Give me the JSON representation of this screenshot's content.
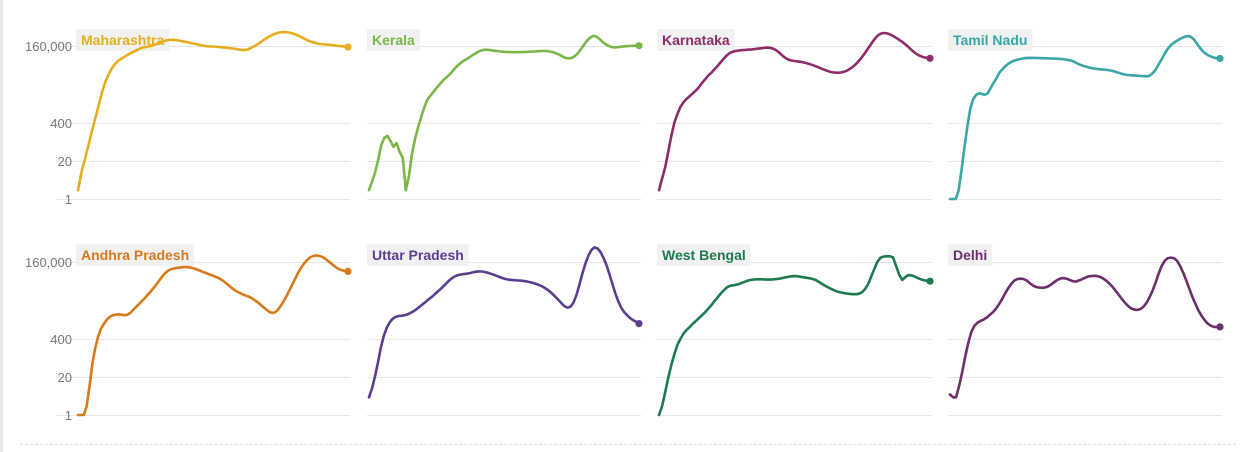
{
  "chart_data": {
    "type": "line",
    "layout": "small-multiples",
    "y_scale": "log",
    "y_ticks": [
      {
        "label": "1",
        "value": 1
      },
      {
        "label": "20",
        "value": 20
      },
      {
        "label": "400",
        "value": 400
      },
      {
        "label": "160,000",
        "value": 160000
      }
    ],
    "ylim": [
      1,
      2000000
    ],
    "grid": true,
    "panels": [
      {
        "name": "Maharashtra",
        "color": "#e6ad1f",
        "values": [
          2,
          8,
          22,
          60,
          180,
          500,
          1400,
          3800,
          9000,
          17000,
          28000,
          40000,
          52000,
          62000,
          72000,
          85000,
          98000,
          112000,
          128000,
          142000,
          150000,
          158000,
          168000,
          184000,
          205000,
          230000,
          250000,
          262000,
          265000,
          258000,
          248000,
          235000,
          222000,
          210000,
          198000,
          188000,
          178000,
          168000,
          160000,
          158000,
          156000,
          153000,
          150000,
          146000,
          142000,
          138000,
          133000,
          128000,
          122000,
          118000,
          121000,
          135000,
          155000,
          180000,
          215000,
          260000,
          310000,
          360000,
          410000,
          450000,
          475000,
          482000,
          475000,
          455000,
          420000,
          380000,
          330000,
          290000,
          255000,
          228000,
          210000,
          198000,
          190000,
          185000,
          180000,
          175000,
          170000,
          165000,
          160000,
          155000,
          150000
        ]
      },
      {
        "name": "Kerala",
        "color": "#7ab648",
        "values": [
          2,
          4,
          8,
          22,
          70,
          120,
          140,
          95,
          60,
          80,
          40,
          25,
          2,
          6,
          35,
          110,
          280,
          620,
          1300,
          2400,
          3300,
          4400,
          6000,
          8000,
          10500,
          13200,
          16500,
          21000,
          28000,
          36000,
          44000,
          52000,
          60000,
          70000,
          82000,
          95000,
          108000,
          118000,
          122000,
          120000,
          116000,
          112000,
          109000,
          106000,
          103000,
          101000,
          100500,
          100000,
          100000,
          100500,
          101000,
          102000,
          103000,
          104500,
          106000,
          108000,
          110000,
          110000,
          109000,
          106000,
          100000,
          92000,
          82000,
          72000,
          64000,
          62000,
          64000,
          72000,
          90000,
          125000,
          175000,
          240000,
          310000,
          355000,
          345000,
          290000,
          230000,
          190000,
          165000,
          150000,
          145000,
          148000,
          153000,
          157000,
          160000,
          163000,
          165000,
          166000,
          166500
        ]
      },
      {
        "name": "Karnataka",
        "color": "#8c2c6a",
        "values": [
          2,
          5,
          12,
          40,
          140,
          400,
          800,
          1400,
          2000,
          2600,
          3200,
          4000,
          5000,
          6500,
          9000,
          12000,
          16000,
          20000,
          26000,
          34000,
          45000,
          60000,
          78000,
          94000,
          104000,
          110000,
          115000,
          117500,
          120000,
          122500,
          125000,
          128000,
          132000,
          136000,
          140000,
          143000,
          141000,
          133000,
          118000,
          98000,
          78000,
          64000,
          56000,
          52000,
          50000,
          48500,
          47000,
          44500,
          42000,
          39000,
          36000,
          33000,
          30000,
          27000,
          24500,
          22500,
          21000,
          20200,
          20000,
          20400,
          21500,
          23500,
          27000,
          32000,
          40000,
          52000,
          70000,
          98000,
          140000,
          200000,
          280000,
          365000,
          425000,
          450000,
          440000,
          405000,
          360000,
          310000,
          265000,
          225000,
          185000,
          150000,
          120000,
          97000,
          82000,
          73000,
          67000,
          64000,
          62000
        ]
      },
      {
        "name": "Tamil Nadu",
        "color": "#3aa6a6",
        "values": [
          1,
          1,
          1,
          2,
          10,
          60,
          300,
          1200,
          2500,
          3500,
          4000,
          3800,
          3500,
          4000,
          6000,
          9000,
          13000,
          20000,
          26000,
          33000,
          40000,
          46000,
          51000,
          55000,
          58000,
          61000,
          63000,
          64000,
          64500,
          64000,
          63500,
          63000,
          62500,
          62000,
          61500,
          61000,
          60500,
          60000,
          59000,
          58000,
          56000,
          54000,
          51000,
          46000,
          41000,
          37000,
          34000,
          32000,
          30000,
          28500,
          27500,
          26500,
          26000,
          25500,
          25000,
          24000,
          23000,
          21500,
          20000,
          18500,
          17500,
          16800,
          16500,
          16200,
          16000,
          15800,
          15500,
          15200,
          15000,
          16500,
          20000,
          27000,
          40000,
          60000,
          90000,
          130000,
          170000,
          205000,
          240000,
          275000,
          310000,
          340000,
          360000,
          330000,
          270000,
          200000,
          145000,
          110000,
          90000,
          78000,
          70000,
          65000,
          62000,
          61000
        ]
      },
      {
        "name": "Andhra Pradesh",
        "color": "#d9791a",
        "values": [
          1,
          1,
          1,
          2,
          10,
          60,
          200,
          500,
          900,
          1300,
          1800,
          2200,
          2500,
          2600,
          2700,
          2600,
          2500,
          2600,
          3000,
          3800,
          4800,
          6000,
          7500,
          9500,
          12500,
          16000,
          21000,
          28000,
          38000,
          52000,
          68000,
          82000,
          92000,
          98000,
          102000,
          105000,
          108000,
          110000,
          108000,
          104000,
          98000,
          90000,
          82000,
          75000,
          69000,
          63000,
          58000,
          53000,
          48000,
          43000,
          37000,
          31000,
          25500,
          21000,
          17800,
          15600,
          13900,
          12500,
          11500,
          10500,
          9300,
          8000,
          6800,
          5600,
          4600,
          3800,
          3200,
          3000,
          3200,
          4000,
          5500,
          8000,
          12000,
          19000,
          30000,
          48000,
          75000,
          110000,
          150000,
          195000,
          235000,
          260000,
          270000,
          265000,
          245000,
          215000,
          180000,
          150000,
          125000,
          105000,
          92000,
          85000,
          80000,
          78000
        ]
      },
      {
        "name": "Uttar Pradesh",
        "color": "#5a3f8f",
        "values": [
          4,
          8,
          20,
          60,
          200,
          500,
          950,
          1450,
          1900,
          2200,
          2350,
          2400,
          2500,
          2700,
          3000,
          3400,
          4000,
          4800,
          5800,
          7000,
          8500,
          10200,
          12500,
          15500,
          19000,
          24000,
          30000,
          38000,
          46000,
          53000,
          58000,
          61000,
          63000,
          65000,
          68000,
          72000,
          76000,
          78000,
          77000,
          74000,
          70000,
          65000,
          60000,
          55000,
          50000,
          46000,
          43000,
          41000,
          40000,
          39000,
          38500,
          38000,
          37000,
          35500,
          34000,
          32000,
          30000,
          27500,
          25000,
          22000,
          19000,
          15800,
          12800,
          10200,
          8000,
          6200,
          5000,
          4500,
          5000,
          7000,
          13000,
          30000,
          70000,
          150000,
          275000,
          420000,
          510000,
          470000,
          360000,
          230000,
          130000,
          65000,
          30000,
          14000,
          7500,
          4500,
          3200,
          2500,
          2000,
          1700,
          1500,
          1300
        ]
      },
      {
        "name": "West Bengal",
        "color": "#1f7a52",
        "values": [
          1,
          2,
          6,
          18,
          50,
          120,
          250,
          400,
          600,
          800,
          1000,
          1300,
          1600,
          2000,
          2500,
          3200,
          4200,
          5500,
          7500,
          10000,
          13500,
          17500,
          22000,
          25000,
          26000,
          27000,
          29000,
          32000,
          35000,
          38000,
          40000,
          41500,
          42000,
          42000,
          41500,
          41000,
          41000,
          41500,
          42500,
          44000,
          46000,
          48500,
          51000,
          53000,
          54000,
          53000,
          51000,
          49000,
          47000,
          45000,
          43000,
          39000,
          34000,
          29000,
          25000,
          22000,
          19500,
          17500,
          16000,
          15000,
          14200,
          13700,
          13300,
          13000,
          13000,
          13500,
          15500,
          20000,
          30000,
          55000,
          100000,
          170000,
          230000,
          250000,
          255000,
          255000,
          235000,
          120000,
          60000,
          40000,
          50000,
          58000,
          57000,
          52000,
          46000,
          42000,
          39000,
          37000,
          36000
        ]
      },
      {
        "name": "Delhi",
        "color": "#6b2f6b",
        "values": [
          5,
          4,
          4,
          10,
          30,
          100,
          300,
          700,
          1100,
          1400,
          1600,
          1800,
          2100,
          2600,
          3200,
          4200,
          6000,
          9000,
          14000,
          21000,
          30000,
          38000,
          43000,
          44000,
          43000,
          38000,
          31000,
          26000,
          23000,
          21800,
          21500,
          22000,
          24000,
          28000,
          34000,
          40000,
          45000,
          46000,
          44000,
          40000,
          36000,
          35000,
          38000,
          42000,
          47000,
          52000,
          54000,
          55000,
          54000,
          50000,
          44000,
          37000,
          30000,
          23000,
          17000,
          12300,
          9000,
          6700,
          5200,
          4300,
          3900,
          3800,
          4000,
          4800,
          6500,
          10000,
          17000,
          32000,
          65000,
          120000,
          180000,
          220000,
          230000,
          220000,
          180000,
          120000,
          70000,
          38000,
          20000,
          10500,
          6000,
          3600,
          2400,
          1700,
          1300,
          1100,
          1000,
          1000,
          1000
        ]
      }
    ]
  }
}
